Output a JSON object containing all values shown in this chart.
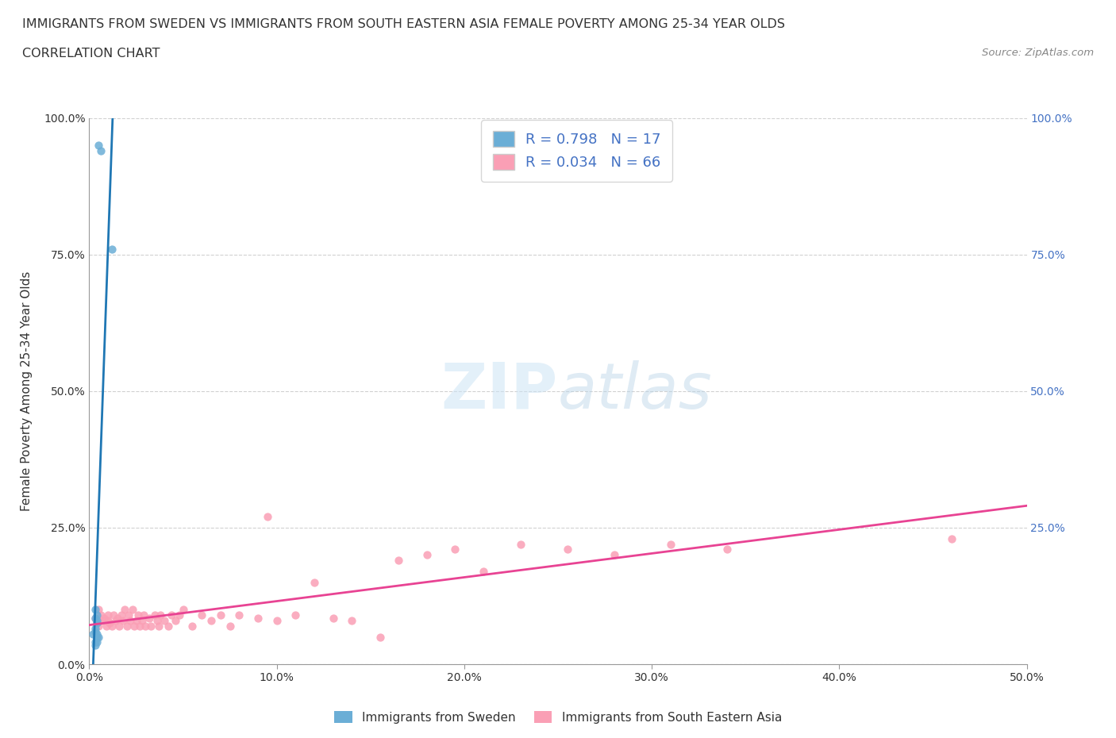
{
  "title_line1": "IMMIGRANTS FROM SWEDEN VS IMMIGRANTS FROM SOUTH EASTERN ASIA FEMALE POVERTY AMONG 25-34 YEAR OLDS",
  "title_line2": "CORRELATION CHART",
  "source_text": "Source: ZipAtlas.com",
  "ylabel": "Female Poverty Among 25-34 Year Olds",
  "legend_label1": "Immigrants from Sweden",
  "legend_label2": "Immigrants from South Eastern Asia",
  "R1": 0.798,
  "N1": 17,
  "R2": 0.034,
  "N2": 66,
  "color_sweden": "#6baed6",
  "color_sea": "#fa9fb5",
  "color_sweden_line": "#1f77b4",
  "color_sea_line": "#e84393",
  "xlim": [
    0.0,
    0.5
  ],
  "ylim": [
    0.0,
    1.0
  ],
  "xtick_values": [
    0.0,
    0.1,
    0.2,
    0.3,
    0.4,
    0.5
  ],
  "xtick_labels": [
    "0.0%",
    "10.0%",
    "20.0%",
    "30.0%",
    "40.0%",
    "50.0%"
  ],
  "ytick_values": [
    0.0,
    0.25,
    0.5,
    0.75,
    1.0
  ],
  "ytick_labels_left": [
    "0.0%",
    "25.0%",
    "50.0%",
    "75.0%",
    "100.0%"
  ],
  "ytick_values_right": [
    0.25,
    0.5,
    0.75,
    1.0
  ],
  "ytick_labels_right": [
    "25.0%",
    "50.0%",
    "75.0%",
    "100.0%"
  ],
  "sweden_x": [
    0.005,
    0.006,
    0.012,
    0.003,
    0.003,
    0.004,
    0.004,
    0.004,
    0.003,
    0.003,
    0.004,
    0.004,
    0.005,
    0.003,
    0.003,
    0.002,
    0.004
  ],
  "sweden_y": [
    0.95,
    0.94,
    0.76,
    0.1,
    0.085,
    0.08,
    0.09,
    0.075,
    0.06,
    0.065,
    0.05,
    0.055,
    0.05,
    0.04,
    0.035,
    0.055,
    0.04
  ],
  "sea_x": [
    0.003,
    0.004,
    0.005,
    0.005,
    0.006,
    0.007,
    0.008,
    0.009,
    0.01,
    0.01,
    0.011,
    0.012,
    0.013,
    0.014,
    0.015,
    0.016,
    0.017,
    0.018,
    0.019,
    0.02,
    0.021,
    0.022,
    0.023,
    0.024,
    0.025,
    0.026,
    0.027,
    0.028,
    0.029,
    0.03,
    0.032,
    0.033,
    0.035,
    0.036,
    0.037,
    0.038,
    0.04,
    0.042,
    0.044,
    0.046,
    0.048,
    0.05,
    0.055,
    0.06,
    0.065,
    0.07,
    0.075,
    0.08,
    0.09,
    0.095,
    0.1,
    0.11,
    0.12,
    0.13,
    0.14,
    0.155,
    0.165,
    0.18,
    0.195,
    0.21,
    0.23,
    0.255,
    0.28,
    0.31,
    0.34,
    0.46
  ],
  "sea_y": [
    0.085,
    0.075,
    0.1,
    0.07,
    0.09,
    0.08,
    0.085,
    0.07,
    0.09,
    0.08,
    0.075,
    0.07,
    0.09,
    0.08,
    0.085,
    0.07,
    0.09,
    0.08,
    0.1,
    0.07,
    0.09,
    0.08,
    0.1,
    0.07,
    0.08,
    0.09,
    0.07,
    0.08,
    0.09,
    0.07,
    0.085,
    0.07,
    0.09,
    0.08,
    0.07,
    0.09,
    0.08,
    0.07,
    0.09,
    0.08,
    0.09,
    0.1,
    0.07,
    0.09,
    0.08,
    0.09,
    0.07,
    0.09,
    0.085,
    0.27,
    0.08,
    0.09,
    0.15,
    0.085,
    0.08,
    0.05,
    0.19,
    0.2,
    0.21,
    0.17,
    0.22,
    0.21,
    0.2,
    0.22,
    0.21,
    0.23
  ],
  "watermark_zip": "ZIP",
  "watermark_atlas": "atlas",
  "background_color": "#ffffff",
  "grid_color": "#cccccc",
  "title_color": "#333333",
  "label_color": "#333333",
  "right_tick_color": "#4472c4",
  "legend_label_color": "#4472c4"
}
